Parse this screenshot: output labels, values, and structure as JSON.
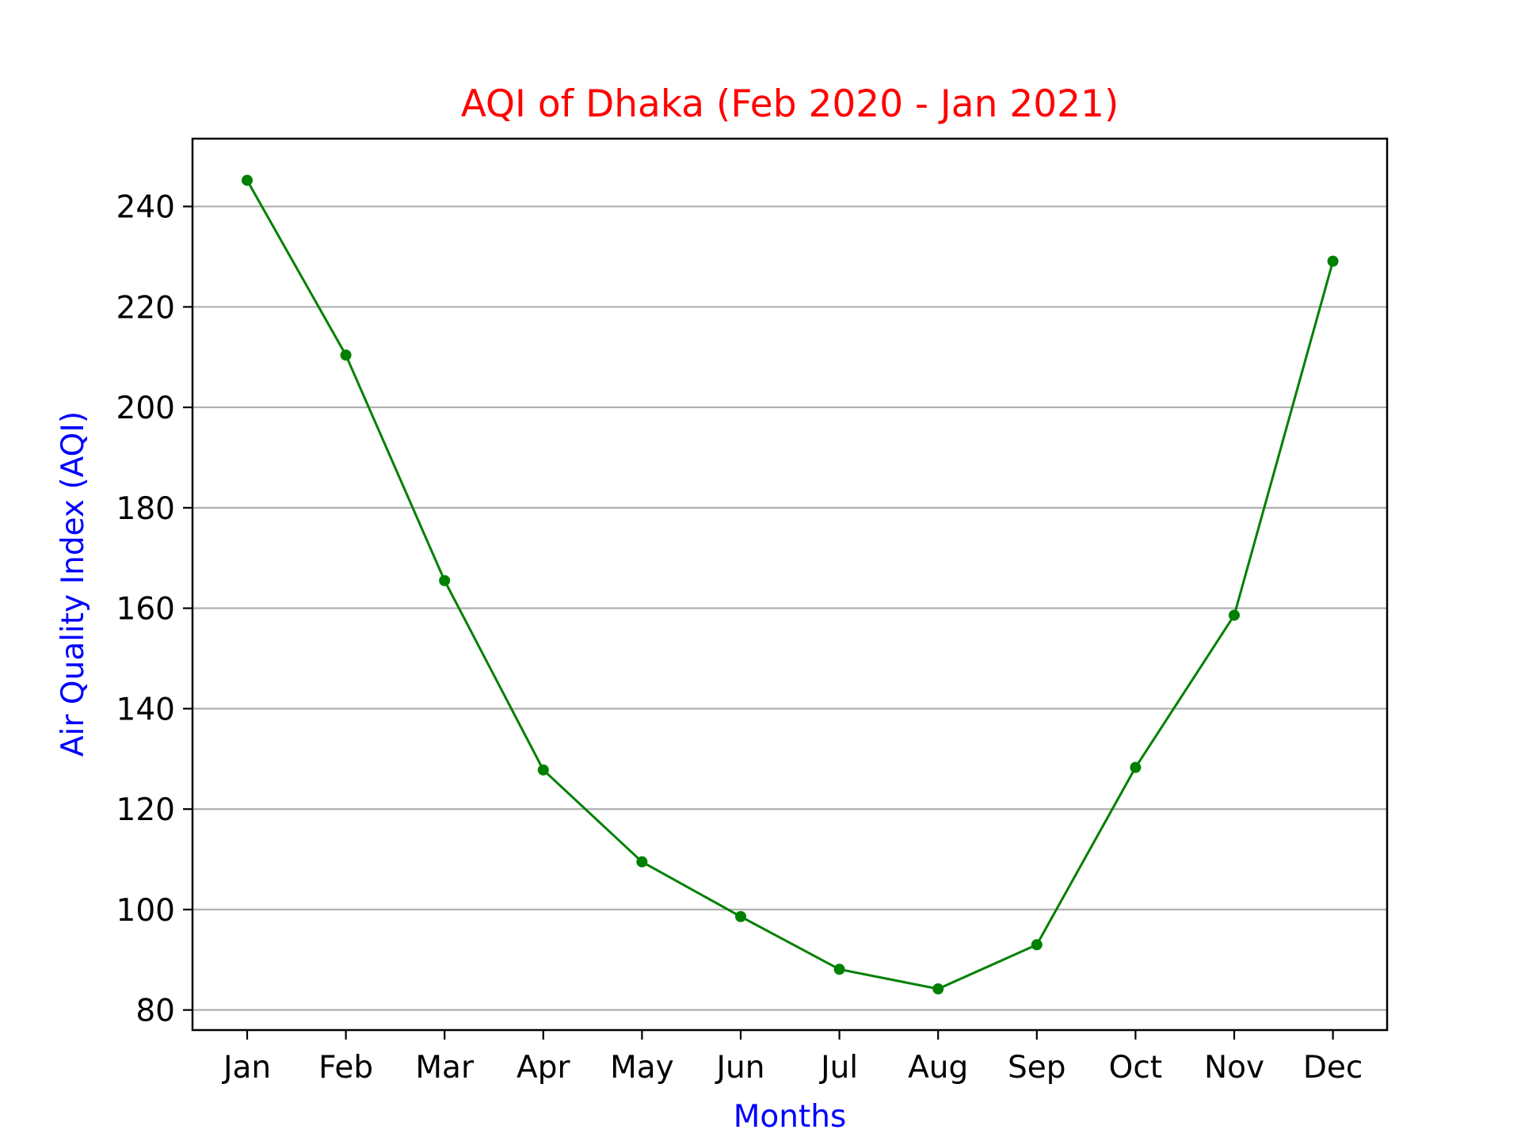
{
  "chart_data": {
    "type": "line",
    "title": "AQI of Dhaka (Feb 2020 - Jan 2021)",
    "xlabel": "Months",
    "ylabel": "Air Quality Index (AQI)",
    "categories": [
      "Jan",
      "Feb",
      "Mar",
      "Apr",
      "May",
      "Jun",
      "Jul",
      "Aug",
      "Sep",
      "Oct",
      "Nov",
      "Dec"
    ],
    "series": [
      {
        "name": "AQI",
        "values": [
          245.2,
          210.4,
          165.5,
          127.8,
          109.5,
          98.6,
          88.1,
          84.2,
          93.0,
          128.3,
          158.6,
          229.1
        ]
      }
    ],
    "yticks": [
      80,
      100,
      120,
      140,
      160,
      180,
      200,
      220,
      240
    ],
    "ylim": [
      76,
      253.5
    ],
    "grid": "y",
    "colors": {
      "line": "#008000",
      "marker": "#008000",
      "title": "#ff0000",
      "axis_label": "#0000ff",
      "grid": "#b0b0b0"
    }
  }
}
